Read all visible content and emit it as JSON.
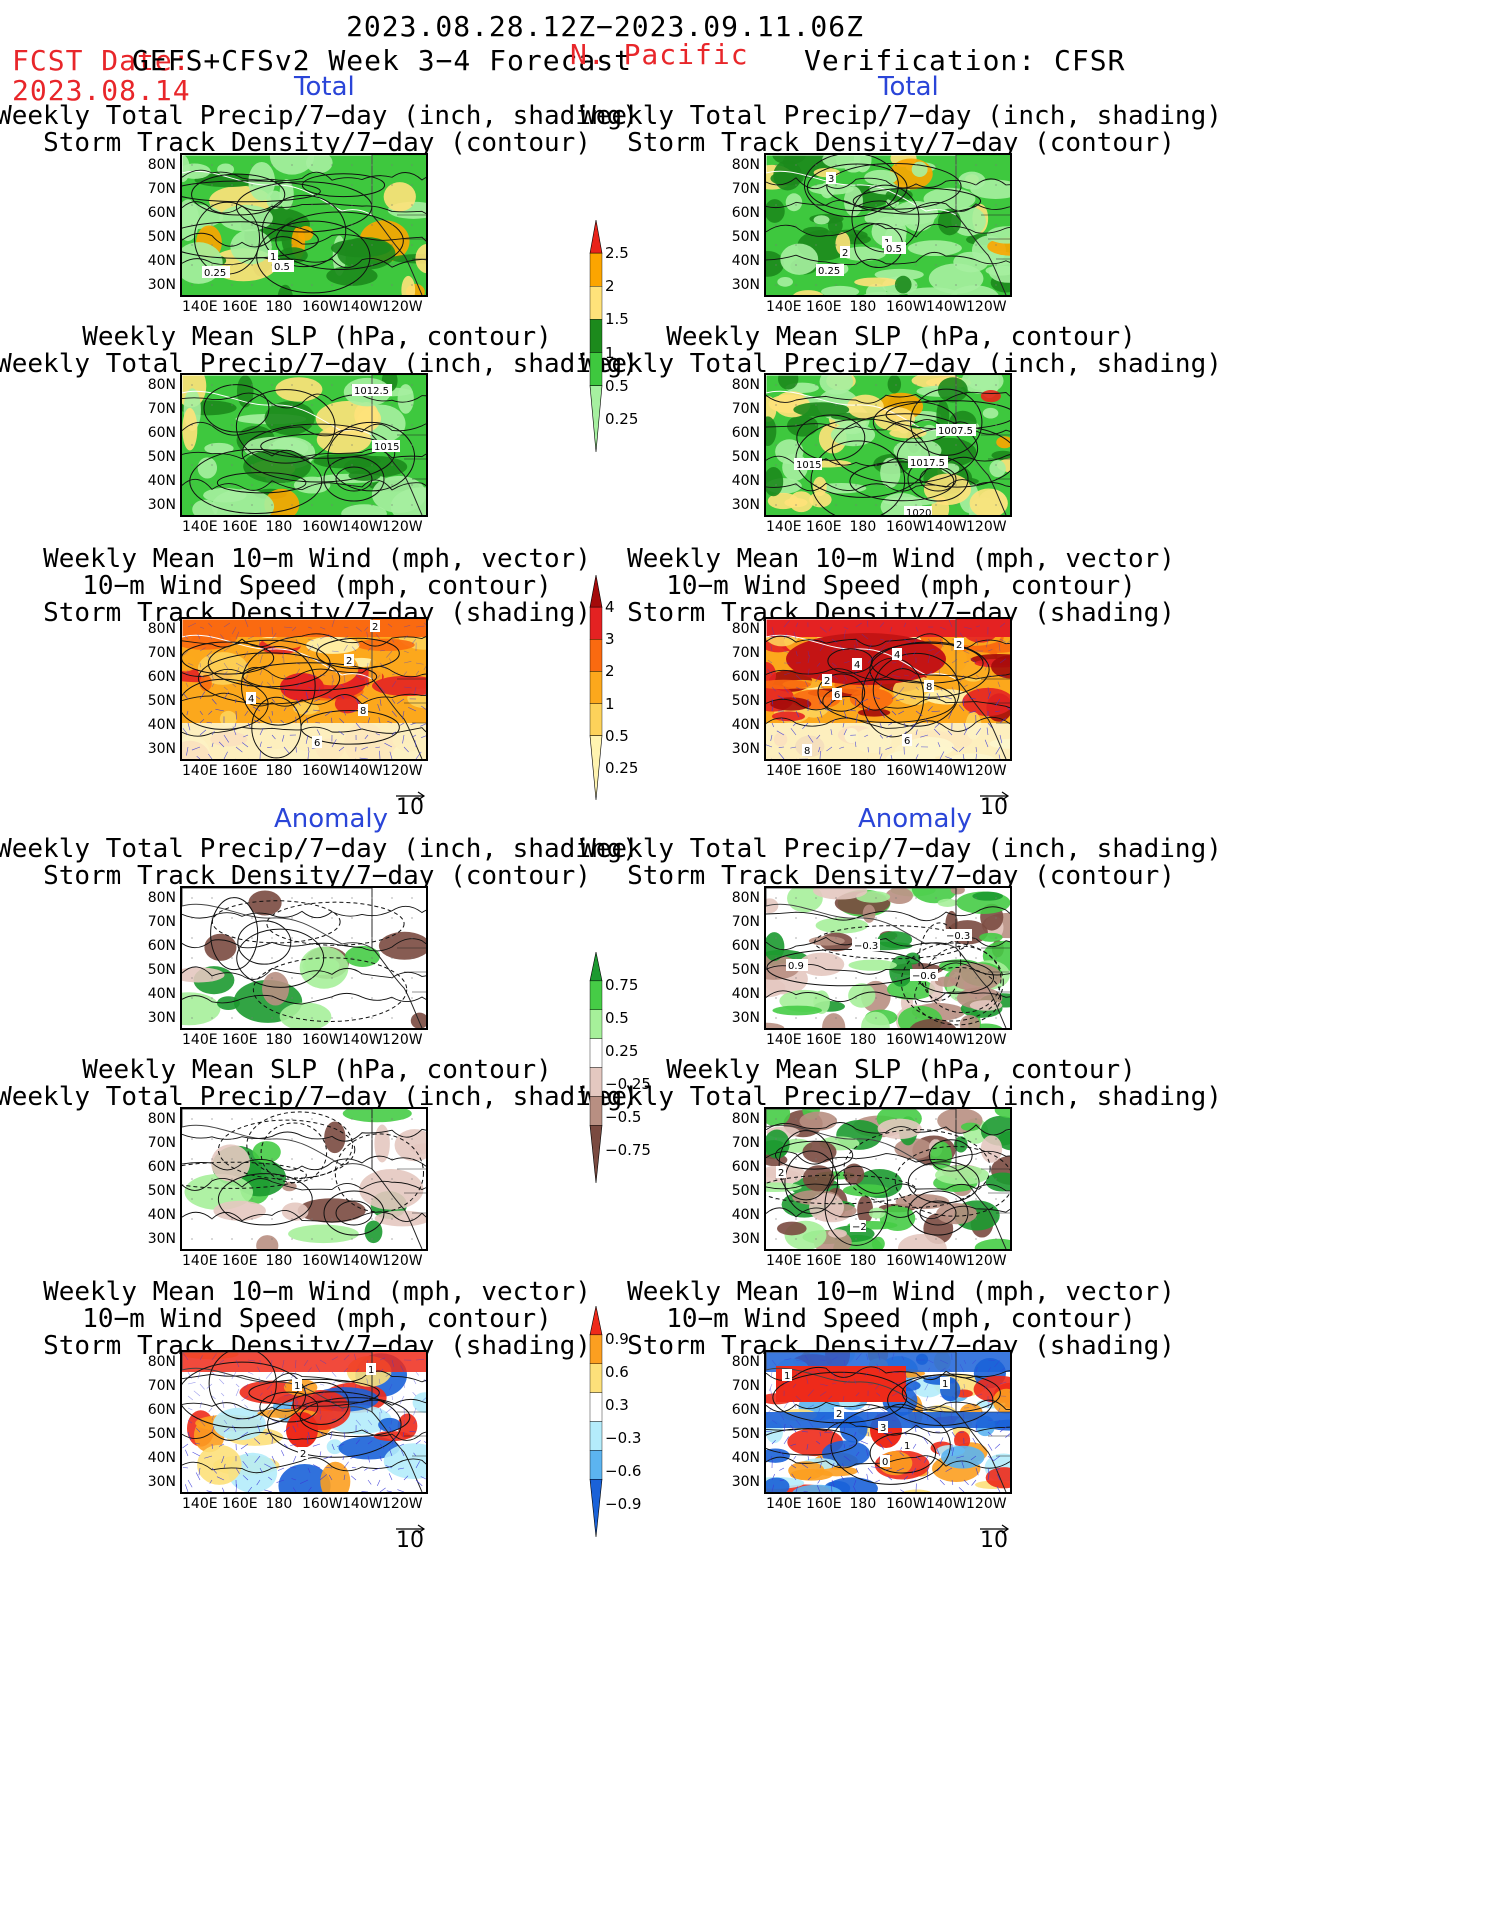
{
  "header": {
    "period": "2023.08.28.12Z−2023.09.11.06Z",
    "fcst_date_label": "FCST Date:",
    "fcst_date": "2023.08.14",
    "model": "GEFS+CFSv2 Week 3−4 Forecast",
    "region": "N. Pacific",
    "verification": "Verification: CFSR"
  },
  "sections": {
    "total": "Total",
    "anomaly": "Anomaly"
  },
  "titles": {
    "precip_storm": [
      "Weekly Total Precip/7−day (inch, shading)",
      "Storm Track Density/7−day (contour)"
    ],
    "slp_precip": [
      "Weekly Mean SLP (hPa, contour)",
      "Weekly Total Precip/7−day (inch, shading)"
    ],
    "wind_storm": [
      "Weekly Mean 10−m Wind (mph, vector)",
      "10−m Wind Speed (mph, contour)",
      "Storm Track Density/7−day (shading)"
    ]
  },
  "axes": {
    "lat_labels": [
      "80N",
      "70N",
      "60N",
      "50N",
      "40N",
      "30N"
    ],
    "lon_labels": [
      "140E",
      "160E",
      "180",
      "160W",
      "140W",
      "120W"
    ]
  },
  "reference_vector": "10",
  "colorbars": {
    "precip_total": {
      "ticks": [
        "2.5",
        "2",
        "1.5",
        "1",
        "0.5",
        "0.25"
      ],
      "colors": [
        "#e8231a",
        "#fca500",
        "#ffe27a",
        "#1c8a1c",
        "#3ec83e",
        "#a6f0a0"
      ]
    },
    "storm_total": {
      "ticks": [
        "4",
        "3",
        "2",
        "1",
        "0.5",
        "0.25"
      ],
      "colors": [
        "#a40a0a",
        "#e42222",
        "#fa6a10",
        "#fca81c",
        "#fdd25a",
        "#fff4b0"
      ]
    },
    "precip_anom": {
      "ticks": [
        "0.75",
        "0.5",
        "0.25",
        "−0.25",
        "−0.5",
        "−0.75"
      ],
      "colors": [
        "#1c9a30",
        "#46cc46",
        "#a6f09a",
        "#ffffff",
        "#e4c8c0",
        "#b88f82",
        "#7a4a40"
      ]
    },
    "storm_anom": {
      "ticks": [
        "0.9",
        "0.6",
        "0.3",
        "−0.3",
        "−0.6",
        "−0.9"
      ],
      "colors": [
        "#ee2a1a",
        "#fc9f20",
        "#fde07a",
        "#ffffff",
        "#b4ecfb",
        "#5cb4f0",
        "#1a62d8"
      ]
    }
  },
  "panel_labels": {
    "p1l": [
      "0.25",
      "0.5",
      "1"
    ],
    "p1r": [
      "3",
      "2",
      "0.25",
      "1",
      "0.5"
    ],
    "p2l": [
      "1012.5",
      "1015"
    ],
    "p2r": [
      "1007.5",
      "1015",
      "1017.5",
      "1020"
    ],
    "p3l": [
      "2",
      "2",
      "4",
      "8",
      "6"
    ],
    "p3r": [
      "2",
      "4",
      "4",
      "2",
      "8",
      "6",
      "6",
      "8"
    ],
    "p4r": [
      "−0.3",
      "0.9",
      "−0.3",
      "−0.6"
    ],
    "p5r": [
      "2",
      "−2"
    ],
    "p6l": [
      "1",
      "1",
      "2"
    ],
    "p6r": [
      "1",
      "1",
      "2",
      "3",
      "1",
      "0"
    ]
  },
  "colors": {
    "red_text": "#e8262a",
    "blue_text": "#2a45d8",
    "vector_blue": "#3a3ad8"
  }
}
